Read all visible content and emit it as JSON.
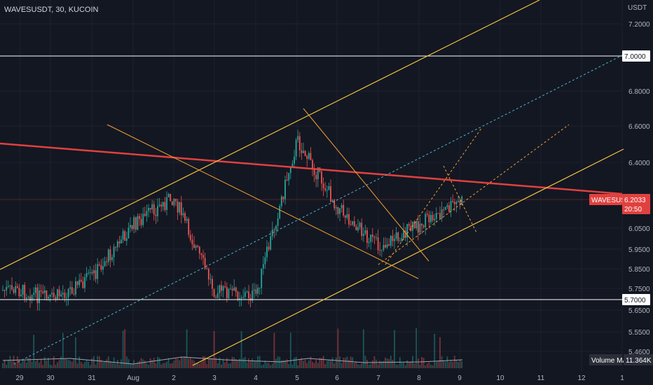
{
  "header": {
    "symbol_title": "WAVESUSDT, 30, KUCOIN"
  },
  "price_axis": {
    "unit": "USDT",
    "ticks": [
      "7.2000",
      "6.8000",
      "6.6000",
      "6.4000",
      "6.0500",
      "5.9500",
      "5.8500",
      "5.7500",
      "5.6500",
      "5.5500",
      "5.4600"
    ]
  },
  "time_axis": {
    "ticks": [
      "29",
      "30",
      "31",
      "Aug",
      "2",
      "3",
      "4",
      "5",
      "6",
      "7",
      "8",
      "9",
      "10",
      "11",
      "12",
      "1"
    ]
  },
  "tags": {
    "level_high": "7.0000",
    "level_low": "5.7000",
    "current_symbol": "WAVESUSDT",
    "current_price": "6.2033",
    "countdown": "20:50",
    "volume_label": "Volume MA",
    "volume_value": "11.364K"
  },
  "colors": {
    "background": "#131722",
    "up": "#26a69a",
    "down": "#ef5350",
    "trend_red": "#e0413f",
    "channel": "#f5c542",
    "fib": "#f0a030",
    "dashed_blue": "#4db6c9",
    "level_line": "#ffffff"
  },
  "chart_data": {
    "type": "candlestick",
    "symbol": "WAVESUSDT",
    "interval": "30",
    "exchange": "KUCOIN",
    "y_unit": "USDT",
    "x_categories": [
      "29",
      "30",
      "31",
      "Aug",
      "2",
      "3",
      "4",
      "5",
      "6",
      "7",
      "8",
      "9",
      "10",
      "11",
      "12"
    ],
    "price_path_approx": [
      {
        "x": "29",
        "y": 5.75
      },
      {
        "x": "30",
        "y": 5.7
      },
      {
        "x": "31",
        "y": 5.82
      },
      {
        "x": "Aug",
        "y": 6.1
      },
      {
        "x": "2",
        "y": 6.25
      },
      {
        "x": "3",
        "y": 5.75
      },
      {
        "x": "4",
        "y": 5.72
      },
      {
        "x": "5",
        "y": 6.55
      },
      {
        "x": "6",
        "y": 6.2
      },
      {
        "x": "7",
        "y": 5.98
      },
      {
        "x": "8",
        "y": 6.1
      },
      {
        "x": "9",
        "y": 6.22
      }
    ],
    "horizontal_levels": [
      7.0,
      5.7
    ],
    "current_price": 6.2033,
    "volume_ma": "11.364K",
    "grid": true
  }
}
